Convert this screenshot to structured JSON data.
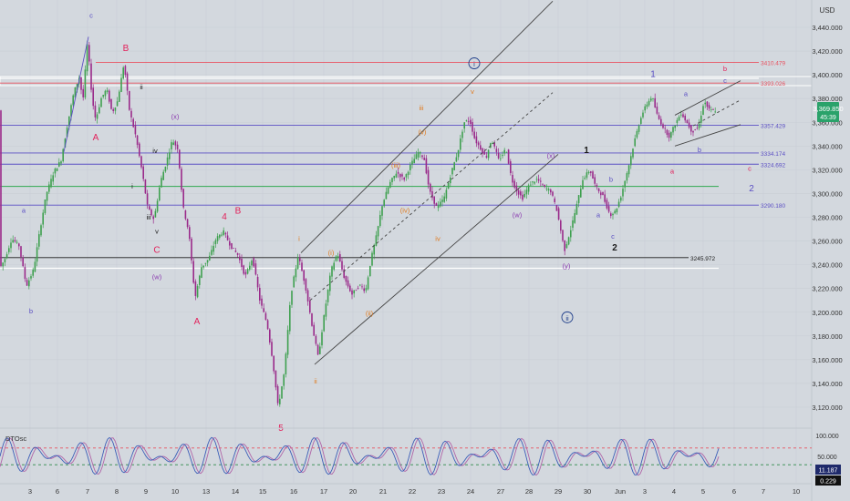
{
  "chart_data": {
    "type": "candlestick",
    "currency": "USD",
    "x_tick_labels": [
      "3",
      "6",
      "7",
      "8",
      "9",
      "10",
      "13",
      "14",
      "15",
      "16",
      "17",
      "20",
      "21",
      "22",
      "23",
      "24",
      "27",
      "28",
      "29",
      "30",
      "Jun",
      "3",
      "4",
      "5",
      "6",
      "7",
      "10"
    ],
    "y_ticks": [
      3440,
      3420,
      3400,
      3380,
      3360,
      3340,
      3320,
      3300,
      3280,
      3260,
      3240,
      3220,
      3200,
      3180,
      3160,
      3140,
      3120
    ],
    "ylim": [
      3108,
      3452
    ],
    "last_price": "3,369.850",
    "countdown": "45:39",
    "horizontal_levels": [
      {
        "label": "3410.479",
        "value": 3410.479,
        "color": "#e8515f"
      },
      {
        "label": "3393.026",
        "value": 3393.026,
        "color": "#e8515f"
      },
      {
        "label": "3357.429",
        "value": 3357.429,
        "color": "#5b4fc4"
      },
      {
        "label": "3334.174",
        "value": 3334.174,
        "color": "#5b4fc4"
      },
      {
        "label": "3324.692",
        "value": 3324.692,
        "color": "#5b4fc4"
      },
      {
        "label": "3290.180",
        "value": 3290.18,
        "color": "#5b4fc4"
      },
      {
        "label": "3245.972",
        "value": 3245.972,
        "color": "#1a1a1a"
      }
    ],
    "price_path": [
      [
        0,
        3236
      ],
      [
        6,
        3244
      ],
      [
        14,
        3262
      ],
      [
        22,
        3256
      ],
      [
        30,
        3222
      ],
      [
        38,
        3236
      ],
      [
        45,
        3270
      ],
      [
        52,
        3300
      ],
      [
        60,
        3318
      ],
      [
        68,
        3328
      ],
      [
        75,
        3358
      ],
      [
        82,
        3385
      ],
      [
        88,
        3398
      ],
      [
        92,
        3378
      ],
      [
        97,
        3428
      ],
      [
        102,
        3380
      ],
      [
        106,
        3362
      ],
      [
        112,
        3380
      ],
      [
        118,
        3388
      ],
      [
        124,
        3368
      ],
      [
        130,
        3378
      ],
      [
        137,
        3410
      ],
      [
        143,
        3370
      ],
      [
        150,
        3348
      ],
      [
        157,
        3318
      ],
      [
        163,
        3288
      ],
      [
        170,
        3278
      ],
      [
        177,
        3310
      ],
      [
        183,
        3325
      ],
      [
        190,
        3345
      ],
      [
        196,
        3338
      ],
      [
        202,
        3288
      ],
      [
        208,
        3268
      ],
      [
        215,
        3212
      ],
      [
        222,
        3238
      ],
      [
        230,
        3245
      ],
      [
        238,
        3262
      ],
      [
        246,
        3268
      ],
      [
        254,
        3256
      ],
      [
        262,
        3248
      ],
      [
        270,
        3230
      ],
      [
        278,
        3246
      ],
      [
        286,
        3210
      ],
      [
        294,
        3190
      ],
      [
        300,
        3160
      ],
      [
        306,
        3120
      ],
      [
        313,
        3150
      ],
      [
        320,
        3215
      ],
      [
        328,
        3248
      ],
      [
        336,
        3222
      ],
      [
        343,
        3190
      ],
      [
        350,
        3162
      ],
      [
        357,
        3200
      ],
      [
        364,
        3235
      ],
      [
        371,
        3250
      ],
      [
        379,
        3228
      ],
      [
        387,
        3215
      ],
      [
        395,
        3223
      ],
      [
        402,
        3218
      ],
      [
        408,
        3245
      ],
      [
        414,
        3265
      ],
      [
        420,
        3290
      ],
      [
        428,
        3308
      ],
      [
        436,
        3318
      ],
      [
        444,
        3312
      ],
      [
        452,
        3325
      ],
      [
        460,
        3335
      ],
      [
        466,
        3330
      ],
      [
        472,
        3302
      ],
      [
        480,
        3288
      ],
      [
        488,
        3296
      ],
      [
        496,
        3318
      ],
      [
        503,
        3335
      ],
      [
        510,
        3360
      ],
      [
        516,
        3362
      ],
      [
        522,
        3345
      ],
      [
        528,
        3338
      ],
      [
        534,
        3330
      ],
      [
        540,
        3346
      ],
      [
        548,
        3328
      ],
      [
        556,
        3338
      ],
      [
        562,
        3312
      ],
      [
        568,
        3302
      ],
      [
        574,
        3296
      ],
      [
        582,
        3308
      ],
      [
        590,
        3312
      ],
      [
        598,
        3305
      ],
      [
        605,
        3302
      ],
      [
        612,
        3285
      ],
      [
        620,
        3252
      ],
      [
        627,
        3270
      ],
      [
        634,
        3292
      ],
      [
        640,
        3312
      ],
      [
        648,
        3320
      ],
      [
        654,
        3306
      ],
      [
        662,
        3298
      ],
      [
        670,
        3282
      ],
      [
        676,
        3285
      ],
      [
        682,
        3298
      ],
      [
        690,
        3322
      ],
      [
        697,
        3345
      ],
      [
        704,
        3365
      ],
      [
        710,
        3375
      ],
      [
        716,
        3382
      ],
      [
        722,
        3365
      ],
      [
        729,
        3355
      ],
      [
        735,
        3348
      ],
      [
        741,
        3358
      ],
      [
        748,
        3368
      ],
      [
        754,
        3360
      ],
      [
        760,
        3352
      ],
      [
        767,
        3356
      ],
      [
        773,
        3378
      ],
      [
        779,
        3370
      ],
      [
        786,
        3370
      ]
    ],
    "trend_lines": [
      {
        "from": [
          330,
          3250
        ],
        "to": [
          606,
          3462
        ],
        "color": "#444",
        "style": "solid"
      },
      {
        "from": [
          345,
          3156
        ],
        "to": [
          612,
          3333
        ],
        "color": "#444",
        "style": "solid"
      },
      {
        "from": [
          340,
          3210
        ],
        "to": [
          606,
          3385
        ],
        "color": "#444",
        "style": "dashed"
      },
      {
        "from": [
          740,
          3366
        ],
        "to": [
          812,
          3395
        ],
        "color": "#444",
        "style": "solid"
      },
      {
        "from": [
          740,
          3340
        ],
        "to": [
          812,
          3358
        ],
        "color": "#444",
        "style": "solid"
      },
      {
        "from": [
          760,
          3357
        ],
        "to": [
          810,
          3378
        ],
        "color": "#444",
        "style": "dashed"
      },
      {
        "from": [
          97,
          3432
        ],
        "to": [
          70,
          3335
        ],
        "color": "#5b4fc4",
        "style": "solid"
      }
    ],
    "wave_labels": [
      {
        "text": "c",
        "x": 100,
        "y": 3448,
        "color": "#5b4fc4",
        "circle": false
      },
      {
        "text": "B",
        "x": 138,
        "y": 3420,
        "color": "#e2215b",
        "circle": false
      },
      {
        "text": "ii",
        "x": 155,
        "y": 3388,
        "color": "#1a1a1a",
        "circle": false
      },
      {
        "text": "(x)",
        "x": 192,
        "y": 3363,
        "color": "#8b3bb0",
        "circle": false
      },
      {
        "text": "iv",
        "x": 170,
        "y": 3334,
        "color": "#1a1a1a",
        "circle": false
      },
      {
        "text": "A",
        "x": 105,
        "y": 3345,
        "color": "#e2215b",
        "circle": false
      },
      {
        "text": "i",
        "x": 145,
        "y": 3304,
        "color": "#1a1a1a",
        "circle": false
      },
      {
        "text": "iii",
        "x": 163,
        "y": 3278,
        "color": "#1a1a1a",
        "circle": false
      },
      {
        "text": "v",
        "x": 172,
        "y": 3266,
        "color": "#1a1a1a",
        "circle": false
      },
      {
        "text": "C",
        "x": 172,
        "y": 3250,
        "color": "#e2215b",
        "circle": false
      },
      {
        "text": "(w)",
        "x": 172,
        "y": 3228,
        "color": "#8b3bb0",
        "circle": false
      },
      {
        "text": "a",
        "x": 26,
        "y": 3284,
        "color": "#5b4fc4",
        "circle": false
      },
      {
        "text": "b",
        "x": 34,
        "y": 3199,
        "color": "#5b4fc4",
        "circle": false
      },
      {
        "text": "4",
        "x": 246,
        "y": 3278,
        "color": "#e2215b",
        "circle": false
      },
      {
        "text": "B",
        "x": 261,
        "y": 3283,
        "color": "#e2215b",
        "circle": false
      },
      {
        "text": "A",
        "x": 216,
        "y": 3190,
        "color": "#e2215b",
        "circle": false
      },
      {
        "text": "5",
        "x": 308,
        "y": 3100,
        "color": "#e2215b",
        "circle": false
      },
      {
        "text": "i",
        "x": 328,
        "y": 3260,
        "color": "#e07b1f",
        "circle": false
      },
      {
        "text": "ii",
        "x": 346,
        "y": 3140,
        "color": "#e07b1f",
        "circle": false
      },
      {
        "text": "(i)",
        "x": 363,
        "y": 3248,
        "color": "#e07b1f",
        "circle": false
      },
      {
        "text": "(ii)",
        "x": 405,
        "y": 3197,
        "color": "#e07b1f",
        "circle": false
      },
      {
        "text": "iii",
        "x": 462,
        "y": 3370,
        "color": "#e07b1f",
        "circle": false
      },
      {
        "text": "(iii)",
        "x": 434,
        "y": 3322,
        "color": "#e07b1f",
        "circle": false
      },
      {
        "text": "(iv)",
        "x": 444,
        "y": 3284,
        "color": "#e07b1f",
        "circle": false
      },
      {
        "text": "(v)",
        "x": 463,
        "y": 3350,
        "color": "#e07b1f",
        "circle": false
      },
      {
        "text": "iv",
        "x": 480,
        "y": 3260,
        "color": "#e07b1f",
        "circle": false
      },
      {
        "text": "v",
        "x": 518,
        "y": 3384,
        "color": "#e07b1f",
        "circle": false
      },
      {
        "text": "i",
        "x": 520,
        "y": 3407,
        "color": "#1f3e8a",
        "circle": true
      },
      {
        "text": "(x)",
        "x": 604,
        "y": 3330,
        "color": "#8b3bb0",
        "circle": false
      },
      {
        "text": "(w)",
        "x": 567,
        "y": 3280,
        "color": "#8b3bb0",
        "circle": false
      },
      {
        "text": "(y)",
        "x": 621,
        "y": 3237,
        "color": "#8b3bb0",
        "circle": false
      },
      {
        "text": "ii",
        "x": 622,
        "y": 3193,
        "color": "#1f3e8a",
        "circle": true
      },
      {
        "text": "1",
        "x": 643,
        "y": 3334,
        "color": "#1a1a1a",
        "circle": false
      },
      {
        "text": "a",
        "x": 656,
        "y": 3280,
        "color": "#5b4fc4",
        "circle": false
      },
      {
        "text": "b",
        "x": 670,
        "y": 3310,
        "color": "#5b4fc4",
        "circle": false
      },
      {
        "text": "c",
        "x": 672,
        "y": 3262,
        "color": "#5b4fc4",
        "circle": false
      },
      {
        "text": "2",
        "x": 674,
        "y": 3252,
        "color": "#1a1a1a",
        "circle": false
      },
      {
        "text": "1",
        "x": 716,
        "y": 3398,
        "color": "#5b4fc4",
        "circle": false
      },
      {
        "text": "a",
        "x": 752,
        "y": 3382,
        "color": "#5b4fc4",
        "circle": false
      },
      {
        "text": "b",
        "x": 767,
        "y": 3335,
        "color": "#5b4fc4",
        "circle": false
      },
      {
        "text": "a",
        "x": 737,
        "y": 3317,
        "color": "#e2215b",
        "circle": false
      },
      {
        "text": "b",
        "x": 795,
        "y": 3403,
        "color": "#e2215b",
        "circle": false
      },
      {
        "text": "c",
        "x": 795,
        "y": 3393,
        "color": "#5b4fc4",
        "circle": false
      },
      {
        "text": "c",
        "x": 822,
        "y": 3319,
        "color": "#e2215b",
        "circle": false
      },
      {
        "text": "2",
        "x": 824,
        "y": 3302,
        "color": "#5b4fc4",
        "circle": false
      }
    ],
    "oscillator": {
      "name": "DTOsc",
      "y_ticks": [
        100,
        50,
        0
      ],
      "ylim": [
        -12,
        115
      ],
      "levels": [
        {
          "value": 70,
          "color": "#e8515f"
        },
        {
          "value": 30,
          "color": "#2e8a4a"
        }
      ],
      "last_values": [
        "11.187",
        "0.229"
      ]
    }
  }
}
